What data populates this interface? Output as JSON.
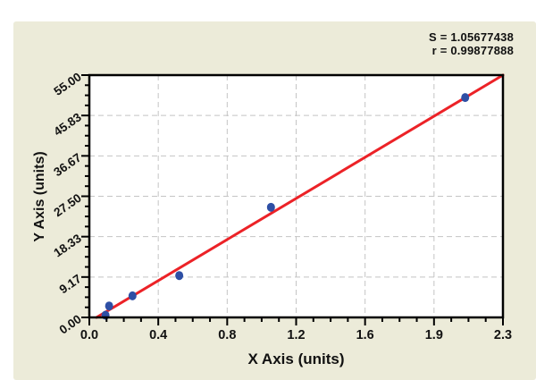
{
  "annotation": {
    "s_label": "S = 1.05677438",
    "r_label": "r = 0.99877888"
  },
  "chart_data": {
    "type": "scatter",
    "title": "",
    "xlabel": "X Axis (units)",
    "ylabel": "Y Axis (units)",
    "xlim": [
      0,
      2.3
    ],
    "ylim": [
      0,
      55
    ],
    "x_tick_labels": [
      "0.0",
      "0.4",
      "0.8",
      "1.2",
      "1.6",
      "1.9",
      "2.3"
    ],
    "y_tick_labels": [
      "0.00",
      "9.17",
      "18.33",
      "27.50",
      "36.67",
      "45.83",
      "55.00"
    ],
    "minor_ticks_per_division": 3,
    "grid": "dashed gray at major ticks",
    "legend_position": "none",
    "points": [
      {
        "x": 0.09,
        "y": 0.5
      },
      {
        "x": 0.11,
        "y": 2.6
      },
      {
        "x": 0.24,
        "y": 4.9
      },
      {
        "x": 0.5,
        "y": 9.5
      },
      {
        "x": 1.01,
        "y": 25.0
      },
      {
        "x": 2.09,
        "y": 49.9
      }
    ],
    "trend_line": {
      "x1": 0.04,
      "y1": 0.0,
      "x2": 2.3,
      "y2": 55.0
    },
    "stats": {
      "S": "1.05677438",
      "r": "0.99877888"
    },
    "colors": {
      "point": "#2E4FA5",
      "line": "#EC2227",
      "grid": "#C4C4C4",
      "axis": "#000000",
      "plot_bg": "#FFFFFF",
      "panel_bg": "#ECEBD9",
      "text": "#111111"
    }
  }
}
